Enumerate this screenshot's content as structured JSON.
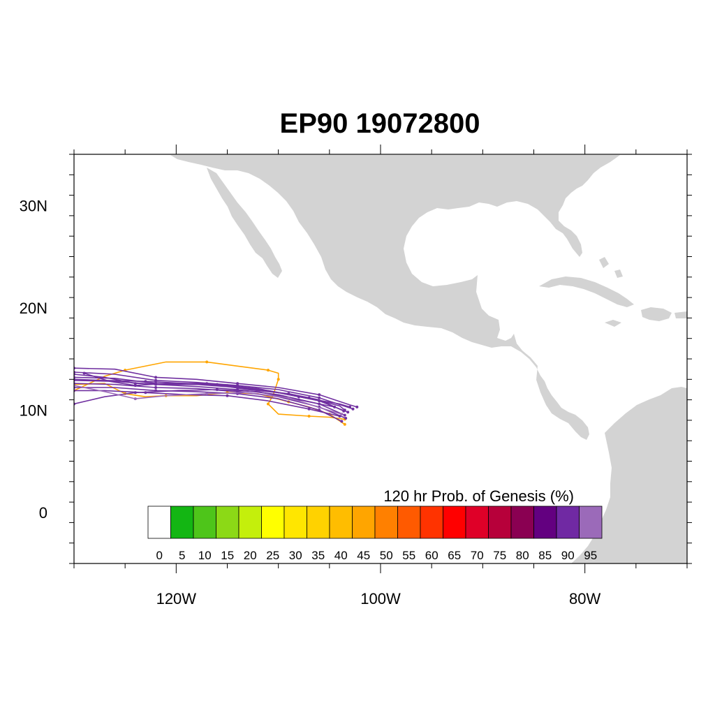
{
  "title": "EP90 19072800",
  "colors": {
    "land": "#d3d3d3",
    "ocean": "#ffffff",
    "track_primary": "#7030a0",
    "track_secondary": "#ffa500"
  },
  "chart_data": {
    "type": "map",
    "projection": "cylindrical-equidistant",
    "lon_range": [
      -130,
      -70
    ],
    "lat_range": [
      -5,
      35
    ],
    "lon_ticks": [
      {
        "value": -120,
        "label": "120W"
      },
      {
        "value": -100,
        "label": "100W"
      },
      {
        "value": -80,
        "label": "80W"
      }
    ],
    "lat_ticks": [
      {
        "value": 30,
        "label": "30N"
      },
      {
        "value": 20,
        "label": "20N"
      },
      {
        "value": 10,
        "label": "10N"
      },
      {
        "value": 0,
        "label": "0"
      }
    ],
    "colorbar": {
      "title": "120 hr Prob. of Genesis (%)",
      "labels": [
        "0",
        "5",
        "10",
        "15",
        "20",
        "25",
        "30",
        "35",
        "40",
        "45",
        "50",
        "55",
        "60",
        "65",
        "70",
        "75",
        "80",
        "85",
        "90",
        "95"
      ],
      "colors": [
        "#ffffff",
        "#13b613",
        "#4ec51a",
        "#8cd916",
        "#c4ef0c",
        "#ffff00",
        "#ffe600",
        "#ffd200",
        "#ffbd00",
        "#ffa500",
        "#ff8000",
        "#ff5a00",
        "#ff3300",
        "#ff0000",
        "#df0028",
        "#b7003a",
        "#8a0052",
        "#630080",
        "#7029a3",
        "#9b6ab9"
      ]
    },
    "tracks": [
      {
        "color": "#ffa500",
        "points": [
          [
            -130,
            11.9
          ],
          [
            -127,
            13.3
          ],
          [
            -125,
            13.9
          ],
          [
            -121,
            14.7
          ],
          [
            -117,
            14.7
          ],
          [
            -114,
            14.3
          ],
          [
            -111,
            13.9
          ],
          [
            -110,
            13.6
          ],
          [
            -110,
            13
          ],
          [
            -110.5,
            11.5
          ],
          [
            -111,
            10.6
          ],
          [
            -110,
            9.6
          ],
          [
            -107,
            9.4
          ],
          [
            -105,
            9.3
          ],
          [
            -103.5,
            9.1
          ]
        ]
      },
      {
        "color": "#ffa500",
        "points": [
          [
            -130,
            12.5
          ],
          [
            -127,
            12.6
          ],
          [
            -125,
            11.6
          ],
          [
            -123,
            11.3
          ],
          [
            -121,
            11.4
          ],
          [
            -118,
            11.4
          ],
          [
            -115,
            11.7
          ],
          [
            -112,
            11.6
          ],
          [
            -109,
            10.8
          ],
          [
            -107,
            10.3
          ],
          [
            -105,
            9.6
          ],
          [
            -103.5,
            8.6
          ]
        ]
      },
      {
        "color": "#7030a0",
        "points": [
          [
            -130,
            14.1
          ],
          [
            -126,
            14
          ],
          [
            -122,
            13.2
          ],
          [
            -118,
            13
          ],
          [
            -114,
            12.6
          ],
          [
            -110,
            12.2
          ],
          [
            -106,
            11.5
          ],
          [
            -103,
            10.5
          ],
          [
            -102.3,
            10.3
          ]
        ]
      },
      {
        "color": "#7030a0",
        "points": [
          [
            -130,
            13.7
          ],
          [
            -126,
            13.5
          ],
          [
            -122,
            12.9
          ],
          [
            -118,
            12.7
          ],
          [
            -114,
            12.4
          ],
          [
            -110,
            12
          ],
          [
            -106,
            11.2
          ],
          [
            -103,
            10.2
          ],
          [
            -102.7,
            10.1
          ]
        ]
      },
      {
        "color": "#7030a0",
        "points": [
          [
            -130,
            13.2
          ],
          [
            -126,
            13.1
          ],
          [
            -122,
            12.6
          ],
          [
            -118,
            12.5
          ],
          [
            -114,
            12.2
          ],
          [
            -110,
            11.7
          ],
          [
            -106,
            10.9
          ],
          [
            -103.2,
            9.8
          ]
        ]
      },
      {
        "color": "#7030a0",
        "points": [
          [
            -130,
            12.9
          ],
          [
            -126,
            12.8
          ],
          [
            -122,
            12.5
          ],
          [
            -118,
            12.3
          ],
          [
            -114,
            12
          ],
          [
            -110,
            11.5
          ],
          [
            -106,
            10.6
          ],
          [
            -103.5,
            9.5
          ]
        ]
      },
      {
        "color": "#7030a0",
        "points": [
          [
            -130,
            12.6
          ],
          [
            -126,
            12.5
          ],
          [
            -122,
            12.2
          ],
          [
            -118,
            12.1
          ],
          [
            -114,
            11.8
          ],
          [
            -110,
            11.3
          ],
          [
            -106,
            10.3
          ],
          [
            -103.4,
            9.2
          ]
        ]
      },
      {
        "color": "#7030a0",
        "points": [
          [
            -130,
            12.2
          ],
          [
            -126,
            12.2
          ],
          [
            -122,
            11.9
          ],
          [
            -118,
            11.8
          ],
          [
            -114,
            11.6
          ],
          [
            -110,
            11.1
          ],
          [
            -106,
            10
          ],
          [
            -103.8,
            8.9
          ]
        ]
      },
      {
        "color": "#7030a0",
        "points": [
          [
            -130,
            11.9
          ],
          [
            -127,
            11.9
          ],
          [
            -123,
            11.7
          ],
          [
            -119,
            11.5
          ],
          [
            -115,
            11.4
          ],
          [
            -111,
            10.9
          ],
          [
            -107,
            10.1
          ],
          [
            -104,
            9.4
          ]
        ]
      },
      {
        "color": "#7030a0",
        "points": [
          [
            -130,
            10.6
          ],
          [
            -127,
            11.3
          ],
          [
            -124,
            11.7
          ],
          [
            -120,
            11.9
          ],
          [
            -116,
            12
          ],
          [
            -112,
            11.8
          ],
          [
            -108,
            11
          ],
          [
            -104.5,
            10.3
          ]
        ]
      },
      {
        "color": "#7030a0",
        "points": [
          [
            -130,
            13.5
          ],
          [
            -127,
            13.2
          ],
          [
            -124,
            12.6
          ],
          [
            -120,
            12.5
          ],
          [
            -116,
            12.5
          ],
          [
            -112,
            12.1
          ],
          [
            -108,
            11.3
          ],
          [
            -104,
            10.6
          ],
          [
            -103,
            10.3
          ]
        ]
      },
      {
        "color": "#9b6ab9",
        "points": [
          [
            -130,
            12.4
          ],
          [
            -127,
            11.8
          ],
          [
            -124,
            11.1
          ],
          [
            -121,
            11.4
          ],
          [
            -117,
            11.6
          ],
          [
            -113,
            11.7
          ],
          [
            -109,
            11.2
          ],
          [
            -105.5,
            10.1
          ],
          [
            -103.8,
            9.6
          ]
        ]
      },
      {
        "color": "#7030a0",
        "points": [
          [
            -130,
            13
          ],
          [
            -127,
            12.9
          ],
          [
            -123,
            12.8
          ],
          [
            -119,
            12.6
          ],
          [
            -115,
            12.4
          ],
          [
            -111,
            11.9
          ],
          [
            -107,
            11.2
          ],
          [
            -104,
            10.4
          ],
          [
            -103.5,
            10
          ]
        ]
      },
      {
        "color": "#7030a0",
        "points": [
          [
            -129,
            13.6
          ],
          [
            -126.5,
            12.8
          ],
          [
            -124,
            12.4
          ],
          [
            -121,
            12.6
          ],
          [
            -117,
            12.6
          ],
          [
            -113,
            12
          ],
          [
            -109,
            11.6
          ],
          [
            -106,
            11
          ],
          [
            -103.6,
            9.9
          ]
        ]
      }
    ]
  }
}
